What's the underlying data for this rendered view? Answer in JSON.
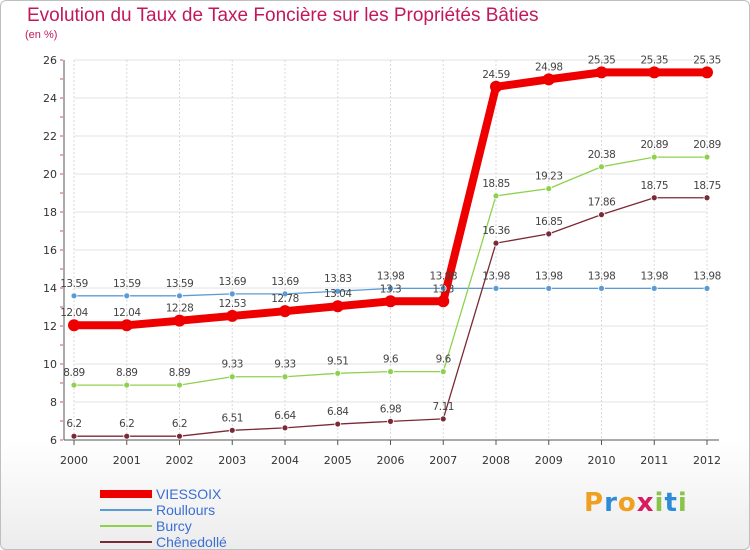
{
  "chart_data": {
    "type": "line",
    "title": "Evolution du Taux de Taxe Foncière sur les Propriétés Bâties",
    "ylabel": "(en %)",
    "x": [
      "2000",
      "2001",
      "2002",
      "2003",
      "2004",
      "2005",
      "2006",
      "2007",
      "2008",
      "2009",
      "2010",
      "2011",
      "2012"
    ],
    "ylim": [
      6,
      26
    ],
    "yticks": [
      6,
      8,
      10,
      12,
      14,
      16,
      18,
      20,
      22,
      24,
      26
    ],
    "series": [
      {
        "name": "Roullours",
        "color": "#5b9bd5",
        "width": 1.3,
        "values": [
          13.59,
          13.59,
          13.59,
          13.69,
          13.69,
          13.83,
          13.98,
          13.98,
          13.98,
          13.98,
          13.98,
          13.98,
          13.98
        ],
        "labels": [
          "13.59",
          "13.59",
          "13.59",
          "13.69",
          "13.69",
          "13.83",
          "13.98",
          "13.98",
          "13.98",
          "13.98",
          "13.98",
          "13.98",
          "13.98"
        ]
      },
      {
        "name": "Burcy",
        "color": "#8fd14f",
        "width": 1.3,
        "values": [
          8.89,
          8.89,
          8.89,
          9.33,
          9.33,
          9.51,
          9.6,
          9.6,
          18.85,
          19.23,
          20.38,
          20.89,
          20.89
        ],
        "labels": [
          "8.89",
          "8.89",
          "8.89",
          "9.33",
          "9.33",
          "9.51",
          "9.6",
          "9.6",
          "18.85",
          "19.23",
          "20.38",
          "20.89",
          "20.89"
        ]
      },
      {
        "name": "Chênedollé",
        "color": "#7a2a34",
        "width": 1.3,
        "values": [
          6.2,
          6.2,
          6.2,
          6.51,
          6.64,
          6.84,
          6.98,
          7.11,
          16.36,
          16.85,
          17.86,
          18.75,
          18.75
        ],
        "labels": [
          "6.2",
          "6.2",
          "6.2",
          "6.51",
          "6.64",
          "6.84",
          "6.98",
          "7.11",
          "16.36",
          "16.85",
          "17.86",
          "18.75",
          "18.75"
        ]
      },
      {
        "name": "VIESSOIX",
        "color": "#ee0000",
        "width": 8,
        "values": [
          12.04,
          12.04,
          12.28,
          12.53,
          12.78,
          13.04,
          13.3,
          13.3,
          24.59,
          24.98,
          25.35,
          25.35,
          25.35
        ],
        "labels": [
          "12.04",
          "12.04",
          "12.28",
          "12.53",
          "12.78",
          "13.04",
          "13.3",
          "13.3",
          "24.59",
          "24.98",
          "25.35",
          "25.35",
          "25.35"
        ]
      }
    ],
    "legend": [
      {
        "name": "VIESSOIX",
        "color": "#ee0000",
        "thickness": 8
      },
      {
        "name": "Roullours",
        "color": "#5b9bd5",
        "thickness": 2
      },
      {
        "name": "Burcy",
        "color": "#8fd14f",
        "thickness": 2
      },
      {
        "name": "Chênedollé",
        "color": "#7a2a34",
        "thickness": 2
      }
    ]
  },
  "logo": {
    "text": "Proxiti"
  }
}
